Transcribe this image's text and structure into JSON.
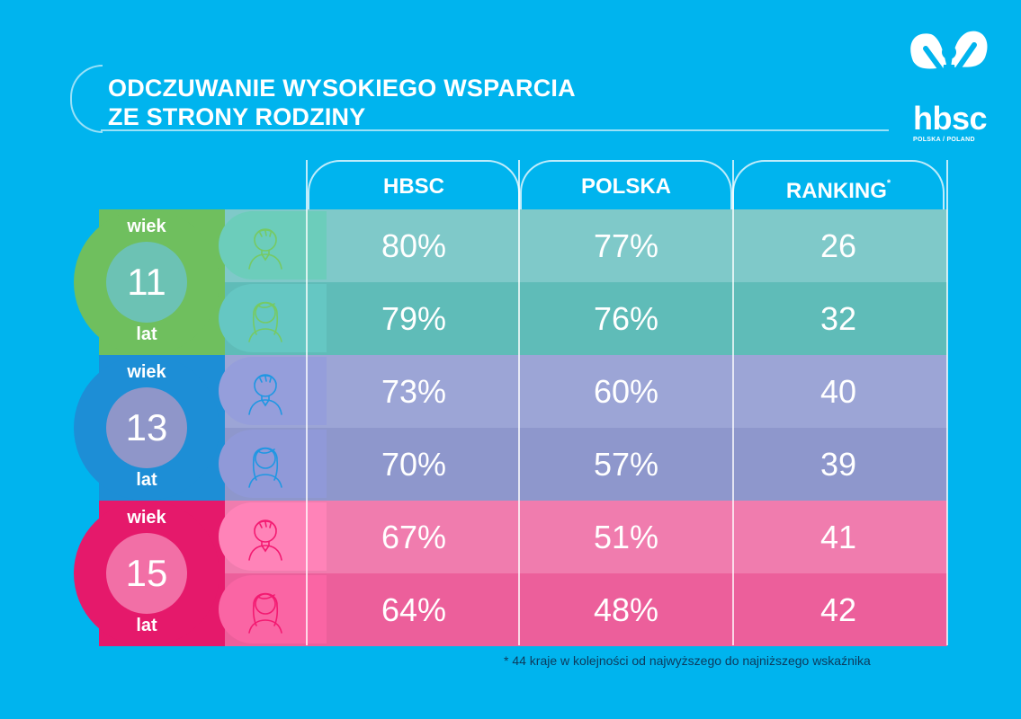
{
  "title": {
    "line1": "ODCZUWANIE WYSOKIEGO WSPARCIA",
    "line2": "ZE STRONY RODZINY"
  },
  "logo": {
    "text": "hbsc",
    "sub": "POLSKA / POLAND"
  },
  "colors": {
    "background": "#00b4ee",
    "age11": "#6fbf5e",
    "age11_inner": "#6cc2b4",
    "age13": "#1d8ed6",
    "age13_inner": "#8f96c9",
    "age15": "#e5196b",
    "age15_inner": "#f26fa6"
  },
  "chart_data": {
    "type": "table",
    "columns": [
      "HBSC",
      "POLSKA",
      "RANKING"
    ],
    "ranking_mark": "*",
    "groups": [
      {
        "age": "11",
        "wiek": "wiek",
        "lat": "lat",
        "rows": [
          {
            "sex": "boy-icon",
            "HBSC": "80%",
            "POLSKA": "77%",
            "RANKING": "26"
          },
          {
            "sex": "girl-icon",
            "HBSC": "79%",
            "POLSKA": "76%",
            "RANKING": "32"
          }
        ]
      },
      {
        "age": "13",
        "wiek": "wiek",
        "lat": "lat",
        "rows": [
          {
            "sex": "boy-icon",
            "HBSC": "73%",
            "POLSKA": "60%",
            "RANKING": "40"
          },
          {
            "sex": "girl-icon",
            "HBSC": "70%",
            "POLSKA": "57%",
            "RANKING": "39"
          }
        ]
      },
      {
        "age": "15",
        "wiek": "wiek",
        "lat": "lat",
        "rows": [
          {
            "sex": "boy-icon",
            "HBSC": "67%",
            "POLSKA": "51%",
            "RANKING": "41"
          },
          {
            "sex": "girl-icon",
            "HBSC": "64%",
            "POLSKA": "48%",
            "RANKING": "42"
          }
        ]
      }
    ]
  },
  "footnote": "* 44 kraje w kolejności od najwyższego do najniższego wskaźnika"
}
